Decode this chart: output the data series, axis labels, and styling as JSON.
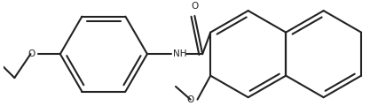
{
  "bg_color": "#ffffff",
  "line_color": "#222222",
  "line_width": 1.5,
  "figsize": [
    4.26,
    1.2
  ],
  "dpi": 100,
  "xlim": [
    0,
    8.52
  ],
  "ylim": [
    0,
    2.4
  ]
}
